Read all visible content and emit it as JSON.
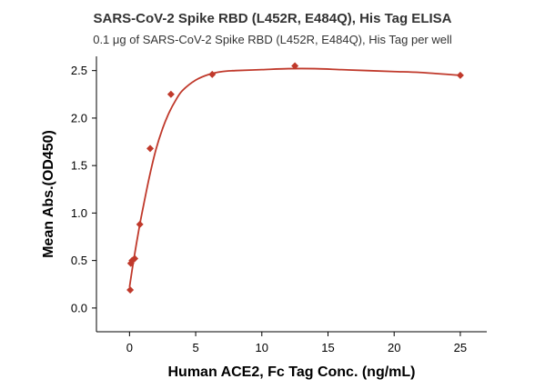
{
  "chart_data": {
    "type": "scatter",
    "title": "SARS-CoV-2 Spike RBD (L452R, E484Q), His Tag ELISA",
    "subtitle": "0.1 μg of SARS-CoV-2 Spike RBD (L452R, E484Q), His Tag per well",
    "xlabel": "Human ACE2, Fc Tag Conc. (ng/mL)",
    "ylabel": "Mean Abs.(OD450)",
    "xlim": [
      -2.5,
      27
    ],
    "ylim": [
      -0.25,
      2.65
    ],
    "xticks": [
      0,
      5,
      10,
      15,
      20,
      25
    ],
    "yticks": [
      0.0,
      0.5,
      1.0,
      1.5,
      2.0,
      2.5
    ],
    "xtick_labels": [
      "0",
      "5",
      "10",
      "15",
      "20",
      "25"
    ],
    "ytick_labels": [
      "0.0",
      "0.5",
      "1.0",
      "1.5",
      "2.0",
      "2.5"
    ],
    "grid": false,
    "series": [
      {
        "marker": "diamond",
        "color": "#c0392b",
        "x": [
          0.05,
          0.1,
          0.2,
          0.39,
          0.78,
          1.56,
          3.13,
          6.25,
          12.5,
          25
        ],
        "y": [
          0.19,
          0.47,
          0.5,
          0.52,
          0.88,
          1.68,
          2.25,
          2.46,
          2.55,
          2.45
        ]
      }
    ],
    "fit_curve": {
      "color": "#c0392b",
      "x": [
        0,
        0.25,
        0.5,
        0.75,
        1,
        1.5,
        2,
        2.5,
        3,
        3.5,
        4,
        5,
        6,
        7,
        8,
        10,
        12,
        14,
        16,
        18,
        20,
        22,
        25
      ],
      "y": [
        0.22,
        0.45,
        0.66,
        0.86,
        1.04,
        1.38,
        1.67,
        1.89,
        2.06,
        2.19,
        2.29,
        2.4,
        2.46,
        2.49,
        2.5,
        2.51,
        2.52,
        2.52,
        2.51,
        2.5,
        2.49,
        2.48,
        2.45
      ]
    }
  }
}
